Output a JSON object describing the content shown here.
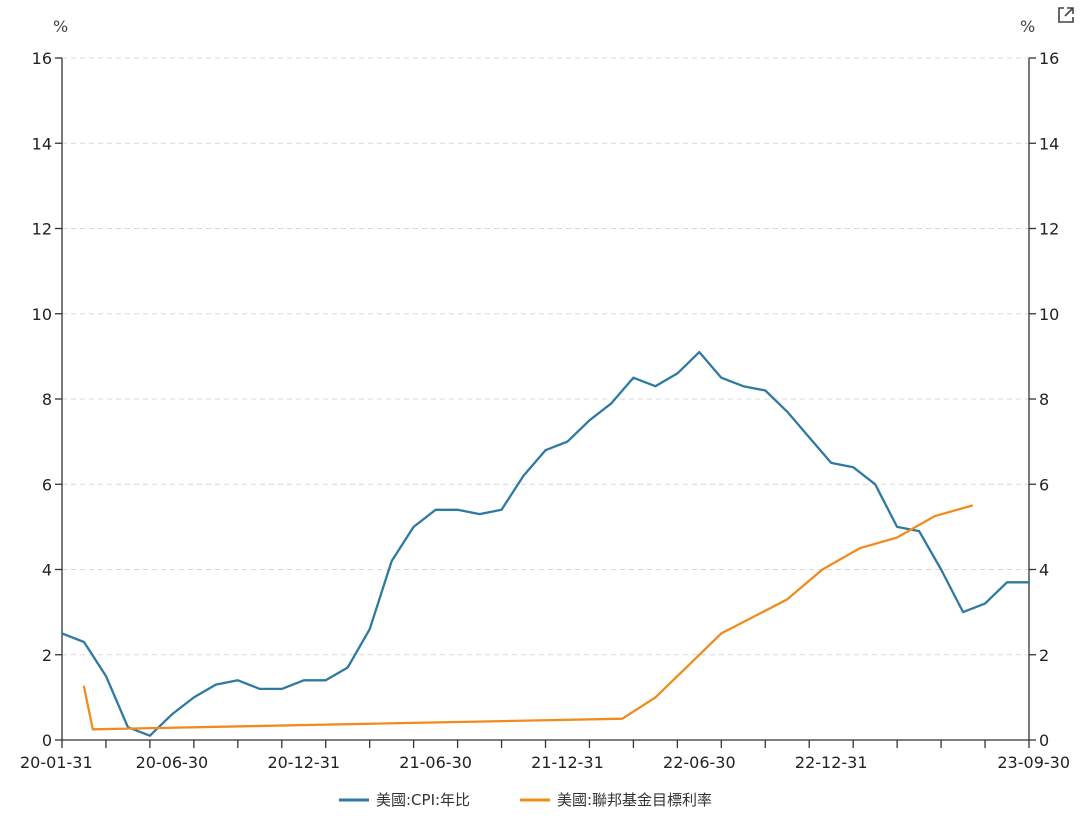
{
  "chart_data": {
    "type": "line",
    "y_unit_left": "%",
    "y_unit_right": "%",
    "ylim": [
      0,
      16
    ],
    "y_ticks": [
      "0",
      "2",
      "4",
      "6",
      "8",
      "10",
      "12",
      "14",
      "16"
    ],
    "grid": true,
    "legend_position": "bottom-center",
    "x_tick_labels": [
      "20-01-31",
      "20-06-30",
      "20-12-31",
      "21-06-30",
      "21-12-31",
      "22-06-30",
      "22-12-31",
      "23-09-30"
    ],
    "x_tick_label_months": [
      0,
      5,
      11,
      17,
      23,
      29,
      35,
      44
    ],
    "x_range_months": [
      0,
      44
    ],
    "series": [
      {
        "name": "美國:CPI:年比",
        "color": "#2e7aa0",
        "months": [
          0,
          1,
          2,
          3,
          4,
          5,
          6,
          7,
          8,
          9,
          10,
          11,
          12,
          13,
          14,
          15,
          16,
          17,
          18,
          19,
          20,
          21,
          22,
          23,
          24,
          25,
          26,
          27,
          28,
          29,
          30,
          31,
          32,
          33,
          34,
          35,
          36,
          37,
          38,
          39,
          40,
          41,
          42,
          43,
          44
        ],
        "values": [
          2.5,
          2.3,
          1.5,
          0.3,
          0.1,
          0.6,
          1.0,
          1.3,
          1.4,
          1.2,
          1.2,
          1.4,
          1.4,
          1.7,
          2.6,
          4.2,
          5.0,
          5.4,
          5.4,
          5.3,
          5.4,
          6.2,
          6.8,
          7.0,
          7.5,
          7.9,
          8.5,
          8.3,
          8.6,
          9.1,
          8.5,
          8.3,
          8.2,
          7.7,
          7.1,
          6.5,
          6.4,
          6.0,
          5.0,
          4.9,
          4.0,
          3.0,
          3.2,
          3.7,
          3.7
        ]
      },
      {
        "name": "美國:聯邦基金目標利率",
        "color": "#f08c1e",
        "months": [
          1.0,
          1.4,
          25.5,
          27.0,
          28.5,
          30.0,
          31.5,
          33.0,
          34.6,
          36.3,
          38.0,
          39.7,
          41.4
        ],
        "values": [
          1.25,
          0.25,
          0.5,
          1.0,
          1.75,
          2.5,
          2.9,
          3.3,
          4.0,
          4.5,
          4.75,
          5.25,
          5.5
        ]
      }
    ]
  }
}
